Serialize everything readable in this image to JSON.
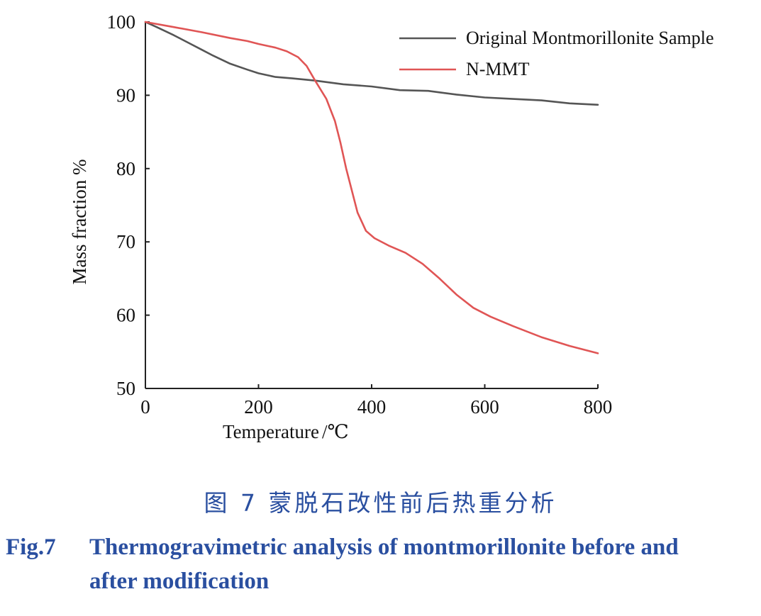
{
  "chart_data": {
    "type": "line",
    "xlabel": "Temperature",
    "xunit": "/℃",
    "ylabel": "Mass fraction %",
    "xlim": [
      0,
      800
    ],
    "ylim": [
      50,
      100
    ],
    "xticks": [
      0,
      200,
      400,
      600,
      800
    ],
    "yticks": [
      50,
      60,
      70,
      80,
      90,
      100
    ],
    "grid": false,
    "legend_position": "top-right",
    "series": [
      {
        "name": "Original Montmorillonite Sample",
        "color": "#555555",
        "points": [
          [
            0,
            100
          ],
          [
            20,
            99.3
          ],
          [
            50,
            98.2
          ],
          [
            80,
            97
          ],
          [
            100,
            96.2
          ],
          [
            120,
            95.4
          ],
          [
            150,
            94.3
          ],
          [
            180,
            93.5
          ],
          [
            200,
            93.0
          ],
          [
            230,
            92.5
          ],
          [
            260,
            92.3
          ],
          [
            300,
            92.0
          ],
          [
            350,
            91.5
          ],
          [
            400,
            91.2
          ],
          [
            450,
            90.7
          ],
          [
            500,
            90.6
          ],
          [
            520,
            90.4
          ],
          [
            550,
            90.1
          ],
          [
            600,
            89.7
          ],
          [
            650,
            89.5
          ],
          [
            700,
            89.3
          ],
          [
            750,
            88.9
          ],
          [
            800,
            88.7
          ]
        ]
      },
      {
        "name": "N-MMT",
        "color": "#e05555",
        "points": [
          [
            0,
            100
          ],
          [
            50,
            99.3
          ],
          [
            100,
            98.6
          ],
          [
            150,
            97.8
          ],
          [
            180,
            97.4
          ],
          [
            200,
            97.0
          ],
          [
            230,
            96.5
          ],
          [
            250,
            96.0
          ],
          [
            270,
            95.2
          ],
          [
            285,
            94.0
          ],
          [
            300,
            92.0
          ],
          [
            320,
            89.5
          ],
          [
            335,
            86.5
          ],
          [
            345,
            83.5
          ],
          [
            355,
            80.0
          ],
          [
            365,
            77.0
          ],
          [
            375,
            74.0
          ],
          [
            390,
            71.5
          ],
          [
            405,
            70.5
          ],
          [
            430,
            69.5
          ],
          [
            460,
            68.5
          ],
          [
            490,
            67.0
          ],
          [
            520,
            65.0
          ],
          [
            550,
            62.8
          ],
          [
            580,
            61.0
          ],
          [
            610,
            59.8
          ],
          [
            650,
            58.5
          ],
          [
            700,
            57.0
          ],
          [
            750,
            55.8
          ],
          [
            800,
            54.8
          ]
        ]
      }
    ]
  },
  "caption": {
    "cn": "图 7   蒙脱石改性前后热重分析",
    "en_number": "Fig.7",
    "en_text": "Thermogravimetric analysis of montmorillonite before and after modification",
    "color": "#2a4fa0"
  }
}
